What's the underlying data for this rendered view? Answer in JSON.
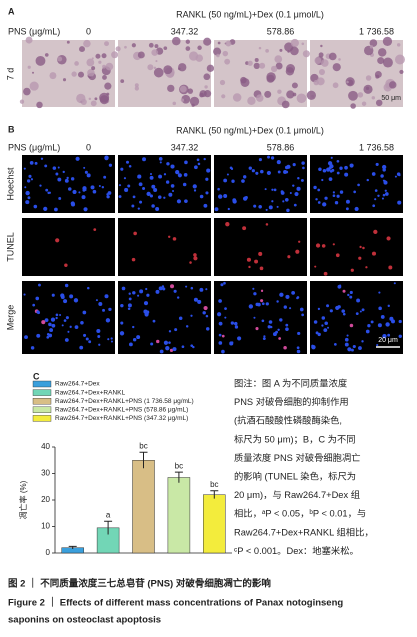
{
  "panel_a": {
    "label": "A",
    "header": "RANKL (50 ng/mL)+Dex (0.1 μmol/L)",
    "row_title": "PNS (μg/mL)",
    "columns": [
      "0",
      "347.32",
      "578.86",
      "1 736.58"
    ],
    "rows": [
      "7 d"
    ],
    "scale_bar": "50 μm"
  },
  "panel_b": {
    "label": "B",
    "header": "RANKL (50 ng/mL)+Dex (0.1 μmol/L)",
    "row_title": "PNS (μg/mL)",
    "columns": [
      "0",
      "347.32",
      "578.86",
      "1 736.58"
    ],
    "rows": [
      "Hoechst",
      "TUNEL",
      "Merge"
    ],
    "scale_bar": "20 μm"
  },
  "chart_data": {
    "type": "bar",
    "label": "C",
    "y_label": "凋亡率 (%)",
    "categories": [
      "Raw264.7+Dex",
      "Raw264.7+Dex+RANKL",
      "Raw264.7+Dex+RANKL+PNS (1 736.58 μg/mL)",
      "Raw264.7+Dex+RANKL+PNS (578.86 μg/mL)",
      "Raw264.7+Dex+RANKL+PNS (347.32 μg/mL)"
    ],
    "values": [
      2,
      9.5,
      35,
      28.5,
      22
    ],
    "errors": [
      0.5,
      2.5,
      3,
      2,
      1.5
    ],
    "significance": [
      null,
      "a",
      "bc",
      "bc",
      "bc"
    ],
    "colors": [
      "#3a9fdc",
      "#72d6b6",
      "#d8be86",
      "#c9e8a6",
      "#f3ec3c"
    ],
    "ylim": [
      0,
      40
    ],
    "yticks": [
      0,
      10,
      20,
      30,
      40
    ]
  },
  "note": [
    "图注：图 A 为不同质量浓度",
    "PNS 对破骨细胞的抑制作用",
    "(抗酒石酸酸性磷酸酶染色,",
    "标尺为 50 μm)；B，C 为不同",
    "质量浓度 PNS 对破骨细胞凋亡",
    "的影响 (TUNEL 染色，标尺为",
    "20 μm)，与 Raw264.7+Dex 组",
    "相比，ᵃP < 0.05，ᵇP < 0.01，与",
    "Raw264.7+Dex+RANKL 组相比，",
    "ᶜP < 0.001。Dex：地塞米松。"
  ],
  "caption": {
    "zh": "图 2 ｜ 不同质量浓度三七总皂苷 (PNS) 对破骨细胞凋亡的影响",
    "en": [
      "Figure 2 ｜ Effects of different mass concentrations of Panax notoginseng",
      "saponins on osteoclast apoptosis"
    ]
  }
}
